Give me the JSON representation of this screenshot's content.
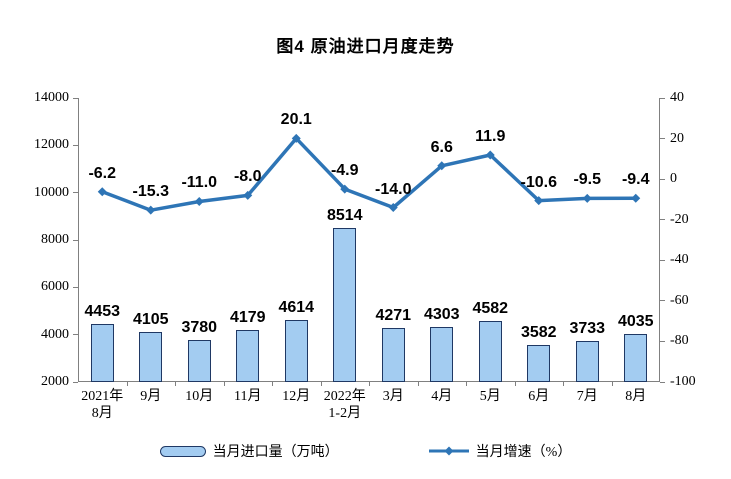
{
  "title": "图4  原油进口月度走势",
  "legend": {
    "bar_label": "当月进口量（万吨）",
    "line_label": "当月增速（%）"
  },
  "colors": {
    "bar_fill": "#A3CCF1",
    "bar_border": "#1F3864",
    "line": "#2E75B6",
    "axis": "#808080",
    "text": "#000000",
    "background": "#FFFFFF"
  },
  "chart_data": {
    "type": "bar",
    "subtype": "bar+line dual axis",
    "title": "图4  原油进口月度走势",
    "categories": [
      [
        "2021年",
        "8月"
      ],
      [
        "9月"
      ],
      [
        "10月"
      ],
      [
        "11月"
      ],
      [
        "12月"
      ],
      [
        "2022年",
        "1-2月"
      ],
      [
        "3月"
      ],
      [
        "4月"
      ],
      [
        "5月"
      ],
      [
        "6月"
      ],
      [
        "7月"
      ],
      [
        "8月"
      ]
    ],
    "series": [
      {
        "name": "当月进口量（万吨）",
        "type": "bar",
        "axis": "left",
        "values": [
          4453,
          4105,
          3780,
          4179,
          4614,
          8514,
          4271,
          4303,
          4582,
          3582,
          3733,
          4035
        ],
        "labels": [
          "4453",
          "4105",
          "3780",
          "4179",
          "4614",
          "8514",
          "4271",
          "4303",
          "4582",
          "3582",
          "3733",
          "4035"
        ]
      },
      {
        "name": "当月增速（%）",
        "type": "line",
        "axis": "right",
        "values": [
          -6.2,
          -15.3,
          -11.0,
          -8.0,
          20.1,
          -4.9,
          -14.0,
          6.6,
          11.9,
          -10.6,
          -9.5,
          -9.4
        ],
        "labels": [
          "-6.2",
          "-15.3",
          "-11.0",
          "-8.0",
          "20.1",
          "-4.9",
          "-14.0",
          "6.6",
          "11.9",
          "-10.6",
          "-9.5",
          "-9.4"
        ]
      }
    ],
    "left_axis": {
      "min": 2000,
      "max": 14000,
      "step": 2000,
      "ticks": [
        "2000",
        "4000",
        "6000",
        "8000",
        "10000",
        "12000",
        "14000"
      ]
    },
    "right_axis": {
      "min": -100,
      "max": 40,
      "step": 20,
      "ticks": [
        "-100",
        "-80",
        "-60",
        "-40",
        "-20",
        "0",
        "20",
        "40"
      ]
    },
    "grid": false,
    "legend_position": "bottom"
  }
}
